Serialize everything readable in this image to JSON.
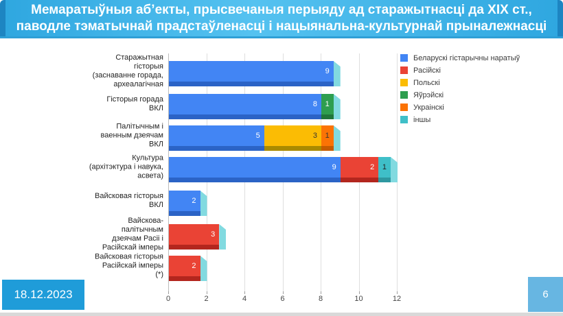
{
  "slide": {
    "title_line1": "Мемаратыўныя аб’екты, прысвечаныя перыяду ад старажытнасці да XIX ст.,",
    "title_line2": "паводле тэматычнай прадстаўленасці і нацыянальна-культурнай прыналежнасці",
    "date": "18.12.2023",
    "page_number": "6",
    "colors": {
      "banner_main": "#2FA7E0",
      "banner_light": "#55C2F0",
      "banner_side": "#1D85C2",
      "banner_underline": "#2E9FD6",
      "date_badge": "#1F9CD9",
      "page_badge": "#67B6E2",
      "footer_strip": "#D9D9D9"
    }
  },
  "chart_data": {
    "type": "bar",
    "orientation": "horizontal",
    "stacked": true,
    "show_values": true,
    "grid": true,
    "legend_position": "right",
    "xlim": [
      0,
      12
    ],
    "x_ticks": [
      0,
      2,
      4,
      6,
      8,
      10,
      12
    ],
    "cap_color": "#82DAE0",
    "series": [
      {
        "name": "Беларускі гістарычны наратыў",
        "color": "#4285F4",
        "dark": "#2B63C6",
        "label_color": "#FFFFFF"
      },
      {
        "name": "Расійскі",
        "color": "#EA4335",
        "dark": "#B3261E",
        "label_color": "#FFFFFF"
      },
      {
        "name": "Польскі",
        "color": "#FBBC04",
        "dark": "#A98A00",
        "label_color": "#333333"
      },
      {
        "name": "Яўрэйскі",
        "color": "#2E9E4F",
        "dark": "#20763A",
        "label_color": "#FFFFFF"
      },
      {
        "name": "Украінскі",
        "color": "#FB7305",
        "dark": "#C75B00",
        "label_color": "#333333"
      },
      {
        "name": "іншы",
        "color": "#3FBFC8",
        "dark": "#2E98A0",
        "label_color": "#222222"
      }
    ],
    "categories": [
      {
        "label_lines": [
          "Старажытная",
          "гісторыя",
          "(заснаванне горада,",
          "археалагічная"
        ],
        "segments": [
          {
            "series_index": 0,
            "value": 9
          }
        ]
      },
      {
        "label_lines": [
          "Гісторыя горада",
          "ВКЛ"
        ],
        "segments": [
          {
            "series_index": 0,
            "value": 8
          },
          {
            "series_index": 3,
            "value": 1
          }
        ]
      },
      {
        "label_lines": [
          "Палітычным і",
          "ваенным дзеячам",
          "ВКЛ"
        ],
        "segments": [
          {
            "series_index": 0,
            "value": 5
          },
          {
            "series_index": 2,
            "value": 3
          },
          {
            "series_index": 4,
            "value": 1
          }
        ]
      },
      {
        "label_lines": [
          "Культура",
          "(архітэктура і навука,",
          "асвета)"
        ],
        "segments": [
          {
            "series_index": 0,
            "value": 9
          },
          {
            "series_index": 1,
            "value": 2
          },
          {
            "series_index": 5,
            "value": 1
          }
        ]
      },
      {
        "label_lines": [
          "Вайсковая гісторыя",
          "ВКЛ"
        ],
        "segments": [
          {
            "series_index": 0,
            "value": 2
          }
        ]
      },
      {
        "label_lines": [
          "Вайскова-",
          "палітычным",
          "дзеячам Расіі і",
          "Расійскай імперы"
        ],
        "segments": [
          {
            "series_index": 1,
            "value": 3
          }
        ]
      },
      {
        "label_lines": [
          "Вайсковая гісторыя",
          "Расійскай імперы",
          "(*)"
        ],
        "segments": [
          {
            "series_index": 1,
            "value": 2
          }
        ]
      }
    ]
  }
}
